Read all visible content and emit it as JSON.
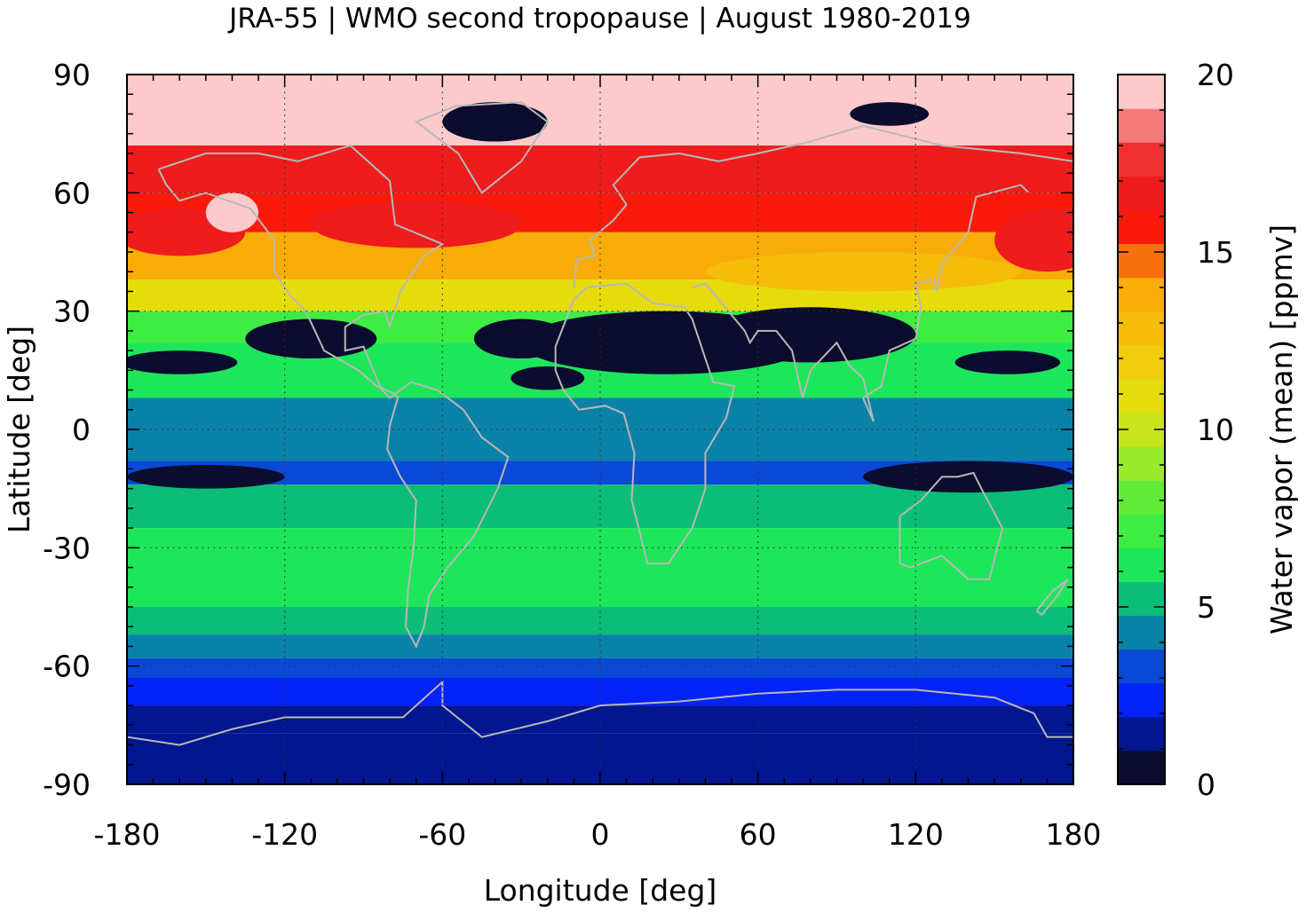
{
  "chart_data": {
    "type": "heatmap",
    "title": "JRA-55 | WMO second tropopause | August 1980-2019",
    "xlabel": "Longitude [deg]",
    "ylabel": "Latitude [deg]",
    "colorbar_label": "Water vapor (mean) [ppmv]",
    "xlim": [
      -180,
      180
    ],
    "ylim": [
      -90,
      90
    ],
    "xticks": [
      -180,
      -120,
      -60,
      0,
      60,
      120,
      180
    ],
    "xtick_labels": [
      "-180",
      "-120",
      "-60",
      "0",
      "60",
      "120",
      "180"
    ],
    "yticks": [
      90,
      60,
      30,
      0,
      -30,
      -60,
      -90
    ],
    "ytick_labels": [
      "90",
      "60",
      "30",
      "0",
      "-30",
      "-60",
      "-90"
    ],
    "colorbar": {
      "range": [
        0,
        20
      ],
      "ticks": [
        0,
        5,
        10,
        15,
        20
      ],
      "tick_labels": [
        "0",
        "5",
        "10",
        "15",
        "20"
      ],
      "colors": [
        "#0b0c2e",
        "#02168f",
        "#0322f5",
        "#0a48d6",
        "#0a82a8",
        "#0bbd78",
        "#1de65a",
        "#3eec44",
        "#62ea3a",
        "#9aea2c",
        "#c8e41c",
        "#e6dc0c",
        "#f0cc0c",
        "#f6bc0a",
        "#f8ac08",
        "#f87010",
        "#fa1a0c",
        "#ee1c1c",
        "#f03030",
        "#f47a7a",
        "#fccaca"
      ]
    },
    "latitude_bands": [
      {
        "lat": [
          72,
          90
        ],
        "value": 19.5
      },
      {
        "lat": [
          60,
          72
        ],
        "value": 16.5
      },
      {
        "lat": [
          50,
          60
        ],
        "value": 15.5
      },
      {
        "lat": [
          38,
          50
        ],
        "value": 13.5
      },
      {
        "lat": [
          30,
          38
        ],
        "value": 10.5
      },
      {
        "lat": [
          22,
          30
        ],
        "value": 7.5
      },
      {
        "lat": [
          8,
          22
        ],
        "value": 6.5
      },
      {
        "lat": [
          -8,
          8
        ],
        "value": 4.5
      },
      {
        "lat": [
          -14,
          -8
        ],
        "value": 3.5
      },
      {
        "lat": [
          -25,
          -14
        ],
        "value": 5.5
      },
      {
        "lat": [
          -45,
          -25
        ],
        "value": 6.5
      },
      {
        "lat": [
          -52,
          -45
        ],
        "value": 5.5
      },
      {
        "lat": [
          -58,
          -52
        ],
        "value": 4.5
      },
      {
        "lat": [
          -63,
          -58
        ],
        "value": 3.5
      },
      {
        "lat": [
          -70,
          -63
        ],
        "value": 2.5
      },
      {
        "lat": [
          -77,
          -70
        ],
        "value": 1.5
      },
      {
        "lat": [
          -90,
          -77
        ],
        "value": 1.0
      }
    ],
    "grid": true
  }
}
